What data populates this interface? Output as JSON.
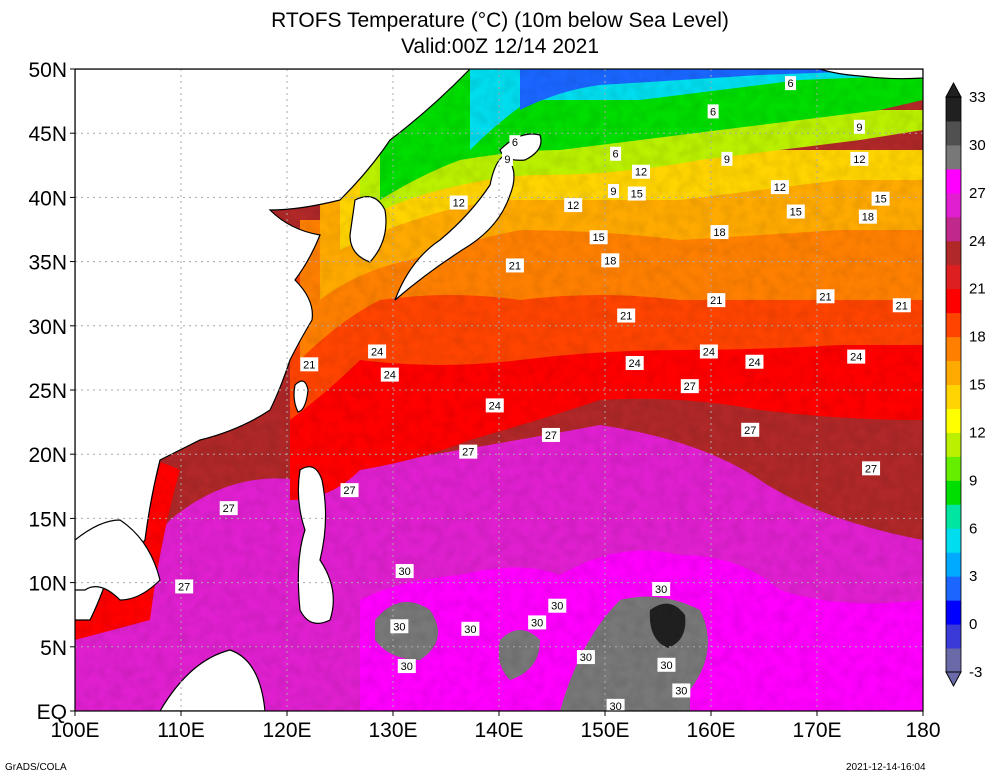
{
  "title": {
    "line1": "RTOFS Temperature (°C) (10m below Sea Level)",
    "line2": "Valid:00Z 12/14 2021"
  },
  "map": {
    "lon_range": [
      100,
      180
    ],
    "lat_range": [
      0,
      50
    ],
    "lon_ticks": [
      "100E",
      "110E",
      "120E",
      "130E",
      "140E",
      "150E",
      "160E",
      "170E",
      "180"
    ],
    "lat_ticks": [
      "EQ",
      "5N",
      "10N",
      "15N",
      "20N",
      "25N",
      "30N",
      "35N",
      "40N",
      "45N",
      "50N"
    ],
    "grid": true
  },
  "colorbar": {
    "labels": [
      "-3",
      "0",
      "3",
      "6",
      "9",
      "12",
      "15",
      "18",
      "21",
      "24",
      "27",
      "30",
      "33"
    ],
    "colors": [
      "#6a6aa8",
      "#3a3ad8",
      "#0000ff",
      "#1a66ff",
      "#00aaff",
      "#00ddee",
      "#00e6a0",
      "#00dd00",
      "#66ee00",
      "#bbf000",
      "#ffff00",
      "#ffd400",
      "#ffaa00",
      "#ff8000",
      "#ff4400",
      "#ff0000",
      "#dd1f1f",
      "#b02828",
      "#c0288c",
      "#e020d0",
      "#ff00ff",
      "#787878",
      "#505050",
      "#202020"
    ]
  },
  "contour_labels": [
    {
      "v": "6",
      "lon": 167.5,
      "lat": 48.9
    },
    {
      "v": "6",
      "lon": 160.2,
      "lat": 46.7
    },
    {
      "v": "6",
      "lon": 141.5,
      "lat": 44.3
    },
    {
      "v": "6",
      "lon": 151.0,
      "lat": 43.4
    },
    {
      "v": "9",
      "lon": 174.0,
      "lat": 45.5
    },
    {
      "v": "9",
      "lon": 140.8,
      "lat": 43.0
    },
    {
      "v": "9",
      "lon": 161.5,
      "lat": 43.0
    },
    {
      "v": "9",
      "lon": 150.8,
      "lat": 40.5
    },
    {
      "v": "12",
      "lon": 174.0,
      "lat": 43.0
    },
    {
      "v": "12",
      "lon": 153.4,
      "lat": 42.0
    },
    {
      "v": "12",
      "lon": 166.5,
      "lat": 40.8
    },
    {
      "v": "12",
      "lon": 136.2,
      "lat": 39.6
    },
    {
      "v": "12",
      "lon": 147.0,
      "lat": 39.4
    },
    {
      "v": "15",
      "lon": 153.0,
      "lat": 40.3
    },
    {
      "v": "15",
      "lon": 176.0,
      "lat": 39.9
    },
    {
      "v": "15",
      "lon": 168.0,
      "lat": 38.9
    },
    {
      "v": "15",
      "lon": 149.4,
      "lat": 36.9
    },
    {
      "v": "18",
      "lon": 174.8,
      "lat": 38.5
    },
    {
      "v": "18",
      "lon": 160.8,
      "lat": 37.3
    },
    {
      "v": "18",
      "lon": 150.5,
      "lat": 35.1
    },
    {
      "v": "21",
      "lon": 141.5,
      "lat": 34.7
    },
    {
      "v": "21",
      "lon": 160.5,
      "lat": 32.0
    },
    {
      "v": "21",
      "lon": 170.8,
      "lat": 32.3
    },
    {
      "v": "21",
      "lon": 178.0,
      "lat": 31.6
    },
    {
      "v": "21",
      "lon": 152.0,
      "lat": 30.8
    },
    {
      "v": "21",
      "lon": 122.1,
      "lat": 27.0
    },
    {
      "v": "24",
      "lon": 128.5,
      "lat": 28.0
    },
    {
      "v": "24",
      "lon": 129.7,
      "lat": 26.2
    },
    {
      "v": "24",
      "lon": 152.8,
      "lat": 27.1
    },
    {
      "v": "24",
      "lon": 159.8,
      "lat": 28.0
    },
    {
      "v": "24",
      "lon": 164.1,
      "lat": 27.2
    },
    {
      "v": "24",
      "lon": 173.7,
      "lat": 27.6
    },
    {
      "v": "24",
      "lon": 139.6,
      "lat": 23.8
    },
    {
      "v": "27",
      "lon": 158.0,
      "lat": 25.3
    },
    {
      "v": "27",
      "lon": 144.9,
      "lat": 21.5
    },
    {
      "v": "27",
      "lon": 163.7,
      "lat": 21.9
    },
    {
      "v": "27",
      "lon": 137.1,
      "lat": 20.2
    },
    {
      "v": "27",
      "lon": 175.1,
      "lat": 18.9
    },
    {
      "v": "27",
      "lon": 125.9,
      "lat": 17.2
    },
    {
      "v": "27",
      "lon": 114.5,
      "lat": 15.8
    },
    {
      "v": "27",
      "lon": 110.3,
      "lat": 9.7
    },
    {
      "v": "30",
      "lon": 131.1,
      "lat": 10.9
    },
    {
      "v": "30",
      "lon": 145.5,
      "lat": 8.2
    },
    {
      "v": "30",
      "lon": 155.3,
      "lat": 9.5
    },
    {
      "v": "30",
      "lon": 130.6,
      "lat": 6.6
    },
    {
      "v": "30",
      "lon": 137.3,
      "lat": 6.4
    },
    {
      "v": "30",
      "lon": 143.6,
      "lat": 6.9
    },
    {
      "v": "30",
      "lon": 148.2,
      "lat": 4.2
    },
    {
      "v": "30",
      "lon": 131.3,
      "lat": 3.5
    },
    {
      "v": "30",
      "lon": 155.8,
      "lat": 3.6
    },
    {
      "v": "30",
      "lon": 157.2,
      "lat": 1.6
    },
    {
      "v": "30",
      "lon": 151.0,
      "lat": 0.4
    }
  ],
  "credit": "GrADS/COLA",
  "timestamp": "2021-12-14-16:04"
}
